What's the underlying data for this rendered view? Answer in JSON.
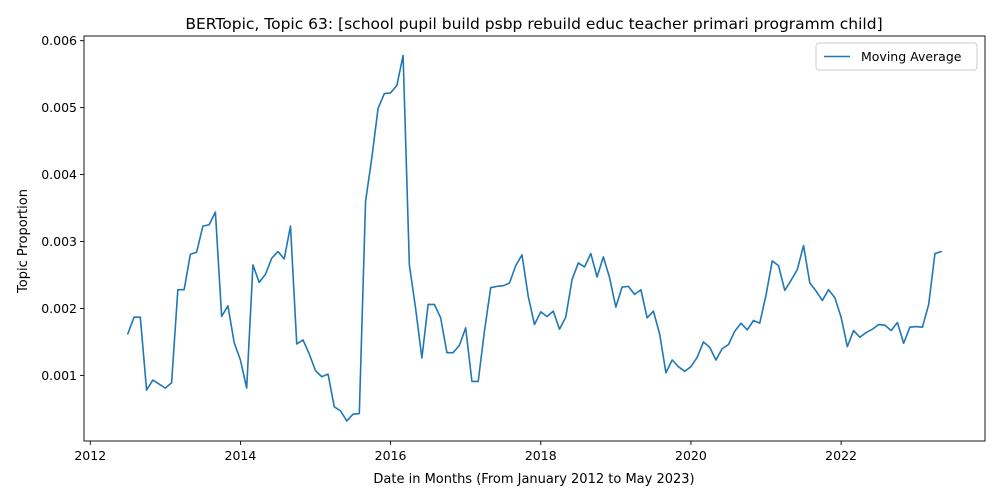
{
  "chart_data": {
    "type": "line",
    "title": "BERTopic, Topic 63: [school pupil build psbp rebuild educ teacher primari programm child]",
    "xlabel": "Date in Months (From January 2012 to May 2023)",
    "ylabel": "Topic Proportion",
    "x_ticks": [
      "2012",
      "2014",
      "2016",
      "2018",
      "2020",
      "2022"
    ],
    "y_ticks": [
      "0.001",
      "0.002",
      "0.003",
      "0.004",
      "0.005",
      "0.006"
    ],
    "xlim": [
      "2011-12",
      "2023-12"
    ],
    "ylim": [
      2e-05,
      0.00607
    ],
    "grid": false,
    "legend_position": "top-right",
    "series_color": "#1f77b4",
    "series": [
      {
        "name": "Moving Average",
        "x": [
          "2012-07",
          "2012-08",
          "2012-09",
          "2012-10",
          "2012-11",
          "2012-12",
          "2013-01",
          "2013-02",
          "2013-03",
          "2013-04",
          "2013-05",
          "2013-06",
          "2013-07",
          "2013-08",
          "2013-09",
          "2013-10",
          "2013-11",
          "2013-12",
          "2014-01",
          "2014-02",
          "2014-03",
          "2014-04",
          "2014-05",
          "2014-06",
          "2014-07",
          "2014-08",
          "2014-09",
          "2014-10",
          "2014-11",
          "2014-12",
          "2015-01",
          "2015-02",
          "2015-03",
          "2015-04",
          "2015-05",
          "2015-06",
          "2015-07",
          "2015-08",
          "2015-09",
          "2015-10",
          "2015-11",
          "2015-12",
          "2016-01",
          "2016-02",
          "2016-03",
          "2016-04",
          "2016-05",
          "2016-06",
          "2016-07",
          "2016-08",
          "2016-09",
          "2016-10",
          "2016-11",
          "2016-12",
          "2017-01",
          "2017-02",
          "2017-03",
          "2017-04",
          "2017-05",
          "2017-06",
          "2017-07",
          "2017-08",
          "2017-09",
          "2017-10",
          "2017-11",
          "2017-12",
          "2018-01",
          "2018-02",
          "2018-03",
          "2018-04",
          "2018-05",
          "2018-06",
          "2018-07",
          "2018-08",
          "2018-09",
          "2018-10",
          "2018-11",
          "2018-12",
          "2019-01",
          "2019-02",
          "2019-03",
          "2019-04",
          "2019-05",
          "2019-06",
          "2019-07",
          "2019-08",
          "2019-09",
          "2019-10",
          "2019-11",
          "2019-12",
          "2020-01",
          "2020-02",
          "2020-03",
          "2020-04",
          "2020-05",
          "2020-06",
          "2020-07",
          "2020-08",
          "2020-09",
          "2020-10",
          "2020-11",
          "2020-12",
          "2021-01",
          "2021-02",
          "2021-03",
          "2021-04",
          "2021-05",
          "2021-06",
          "2021-07",
          "2021-08",
          "2021-09",
          "2021-10",
          "2021-11",
          "2021-12",
          "2022-01",
          "2022-02",
          "2022-03",
          "2022-04",
          "2022-05",
          "2022-06",
          "2022-07",
          "2022-08",
          "2022-09",
          "2022-10",
          "2022-11",
          "2022-12",
          "2023-01",
          "2023-02",
          "2023-03",
          "2023-04",
          "2023-05"
        ],
        "values": [
          0.00162,
          0.00187,
          0.00187,
          0.00078,
          0.00093,
          0.00087,
          0.00081,
          0.00089,
          0.00228,
          0.00228,
          0.00281,
          0.00284,
          0.00323,
          0.00325,
          0.00344,
          0.00188,
          0.00204,
          0.00149,
          0.00123,
          0.00081,
          0.00265,
          0.00239,
          0.00251,
          0.00275,
          0.00285,
          0.00274,
          0.00323,
          0.00147,
          0.00153,
          0.00132,
          0.00107,
          0.00098,
          0.00102,
          0.00053,
          0.00047,
          0.00032,
          0.00042,
          0.00043,
          0.0036,
          0.00425,
          0.00499,
          0.00521,
          0.00522,
          0.00533,
          0.00578,
          0.00265,
          0.002,
          0.00126,
          0.00206,
          0.00206,
          0.00186,
          0.00134,
          0.00134,
          0.00145,
          0.00171,
          0.00091,
          0.00091,
          0.00166,
          0.00231,
          0.00233,
          0.00234,
          0.00238,
          0.00264,
          0.0028,
          0.00218,
          0.00176,
          0.00195,
          0.00188,
          0.00196,
          0.00169,
          0.00187,
          0.00243,
          0.00268,
          0.00262,
          0.00282,
          0.00247,
          0.00277,
          0.00246,
          0.00202,
          0.00232,
          0.00233,
          0.00221,
          0.00228,
          0.00186,
          0.00196,
          0.00162,
          0.00104,
          0.00123,
          0.00113,
          0.00106,
          0.00113,
          0.00127,
          0.0015,
          0.00142,
          0.00123,
          0.0014,
          0.00146,
          0.00166,
          0.00178,
          0.00168,
          0.00182,
          0.00178,
          0.0022,
          0.00271,
          0.00264,
          0.00227,
          0.00242,
          0.00258,
          0.00294,
          0.00238,
          0.00226,
          0.00212,
          0.00228,
          0.00216,
          0.00187,
          0.00143,
          0.00167,
          0.00157,
          0.00164,
          0.00169,
          0.00176,
          0.00175,
          0.00167,
          0.00179,
          0.00148,
          0.00172,
          0.00173,
          0.00172,
          0.00206,
          0.00282,
          0.00285
        ]
      }
    ]
  }
}
